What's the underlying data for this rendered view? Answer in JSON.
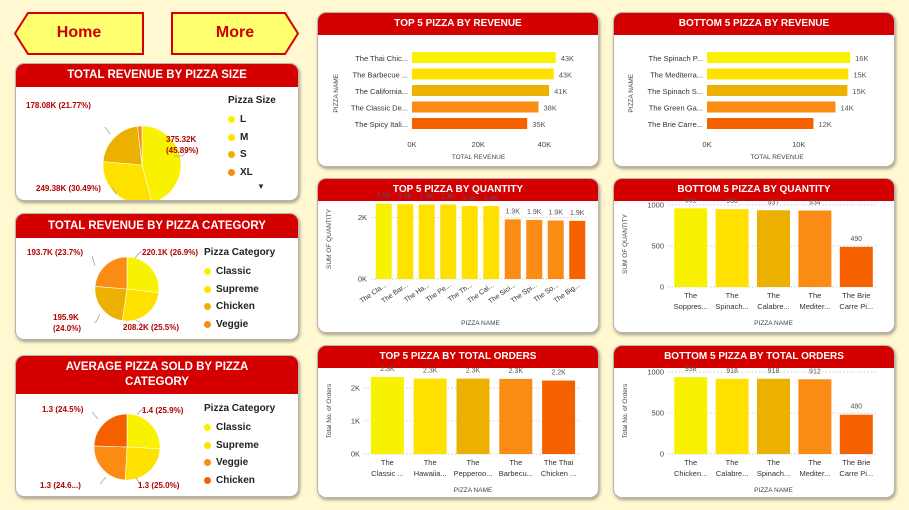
{
  "nav": {
    "home_label": "Home",
    "more_label": "More"
  },
  "colors": {
    "header_bg": "#d40000",
    "yellow_light": "#f8f200",
    "yellow": "#ffe100",
    "amber": "#ecb100",
    "orange": "#fa8c16",
    "orange_dark": "#f66100"
  },
  "size_card": {
    "title": "TOTAL REVENUE BY PIZZA SIZE",
    "legend_title": "Pizza Size",
    "legend": [
      "L",
      "M",
      "S",
      "XL"
    ],
    "labels": [
      "375.32K (45.89%)",
      "249.38K (30.49%)",
      "178.08K (21.77%)"
    ],
    "chart_data": {
      "type": "pie",
      "categories": [
        "L",
        "M",
        "S",
        "XL"
      ],
      "values": [
        375.32,
        249.38,
        178.08,
        15.13
      ],
      "unit": "K"
    }
  },
  "category_card": {
    "title": "TOTAL REVENUE BY PIZZA CATEGORY",
    "legend_title": "Pizza Category",
    "legend": [
      "Classic",
      "Supreme",
      "Chicken",
      "Veggie"
    ],
    "labels": [
      "220.1K (26.9%)",
      "208.2K (25.5%)",
      "195.9K (24.0%)",
      "193.7K (23.7%)"
    ],
    "chart_data": {
      "type": "pie",
      "categories": [
        "Classic",
        "Supreme",
        "Chicken",
        "Veggie"
      ],
      "values": [
        220.1,
        208.2,
        195.9,
        193.7
      ],
      "unit": "K"
    }
  },
  "avg_card": {
    "title": "AVERAGE PIZZA SOLD BY PIZZA CATEGORY",
    "legend_title": "Pizza Category",
    "legend": [
      "Classic",
      "Supreme",
      "Veggie",
      "Chicken"
    ],
    "labels": [
      "1.4 (25.9%)",
      "1.3 (25.0%)",
      "1.3 (24.6...)",
      "1.3 (24.5%)"
    ],
    "chart_data": {
      "type": "pie",
      "categories": [
        "Classic",
        "Supreme",
        "Veggie",
        "Chicken"
      ],
      "values": [
        1.4,
        1.3,
        1.3,
        1.3
      ],
      "percent": [
        25.9,
        25.0,
        24.6,
        24.5
      ]
    }
  },
  "top_rev": {
    "title": "TOP 5 PIZZA BY REVENUE",
    "ylabel": "PIZZA NAME",
    "xlabel": "TOTAL REVENUE",
    "ticks": [
      "0K",
      "20K",
      "40K"
    ],
    "names": [
      "The Thai Chic...",
      "The Barbecue ...",
      "The Californiа...",
      "The Classic De...",
      "The Spicy Itali..."
    ],
    "value_labels": [
      "43K",
      "43K",
      "41K",
      "38K",
      "35K"
    ],
    "chart_data": {
      "type": "bar",
      "orientation": "horizontal",
      "values": [
        43.4,
        42.8,
        41.4,
        38.2,
        34.8
      ],
      "xlim": [
        0,
        45
      ],
      "unit": "K"
    }
  },
  "bottom_rev": {
    "title": "BOTTOM 5 PIZZA BY REVENUE",
    "ylabel": "PIZZA NAME",
    "xlabel": "TOTAL REVENUE",
    "ticks": [
      "0K",
      "10K"
    ],
    "names": [
      "The Spinach P...",
      "The Mediterra...",
      "The Spinach S...",
      "The Green Ga...",
      "The Brie Carre..."
    ],
    "value_labels": [
      "16K",
      "15K",
      "15K",
      "14K",
      "12K"
    ],
    "chart_data": {
      "type": "bar",
      "orientation": "horizontal",
      "values": [
        15.6,
        15.4,
        15.3,
        14.0,
        11.6
      ],
      "xlim": [
        0,
        17
      ],
      "unit": "K"
    }
  },
  "top_qty": {
    "title": "TOP 5 PIZZA BY QUANTITY",
    "ylabel": "SUM OF QUANTITY",
    "xlabel": "PIZZA NAME",
    "ticks": [
      "0K",
      "2K"
    ],
    "names": [
      "The Cla...",
      "The Bar...",
      "The Ha...",
      "The Pe...",
      "The Th...",
      "The Cal...",
      "The Sici...",
      "The Spi...",
      "The So...",
      "The Big..."
    ],
    "value_labels": [
      "2.5K",
      "2.4K",
      "2.4K",
      "2.4K",
      "2.4K",
      "2.4K",
      "1.9K",
      "1.9K",
      "1.9K",
      "1.9K"
    ],
    "chart_data": {
      "type": "bar",
      "values": [
        2.45,
        2.43,
        2.42,
        2.42,
        2.37,
        2.37,
        1.94,
        1.92,
        1.9,
        1.89
      ],
      "ylim": [
        0,
        2.6
      ],
      "unit": "K"
    }
  },
  "bottom_qty": {
    "title": "BOTTOM 5 PIZZA BY QUANTITY",
    "ylabel": "SUM OF QUANTITY",
    "xlabel": "PIZZA NAME",
    "ticks": [
      "0",
      "500",
      "1000"
    ],
    "names": [
      [
        "The",
        "Soppres..."
      ],
      [
        "The",
        "Spinach..."
      ],
      [
        "The",
        "Calabre..."
      ],
      [
        "The",
        "Mediter..."
      ],
      [
        "The Brie",
        "Carre Pi..."
      ]
    ],
    "value_labels": [
      "961",
      "950",
      "937",
      "934",
      "490"
    ],
    "chart_data": {
      "type": "bar",
      "values": [
        961,
        950,
        937,
        934,
        490
      ],
      "ylim": [
        0,
        1050
      ]
    }
  },
  "top_orders": {
    "title": "TOP 5 PIZZA BY TOTAL ORDERS",
    "ylabel": "Total No. of Orders",
    "xlabel": "PIZZA NAME",
    "ticks": [
      "0K",
      "1K",
      "2K"
    ],
    "names": [
      [
        "The",
        "Classic ..."
      ],
      [
        "The",
        "Hawaiia..."
      ],
      [
        "The",
        "Pepperoo..."
      ],
      [
        "The",
        "Barbecu..."
      ],
      [
        "The Thai",
        "Chicken ..."
      ]
    ],
    "value_labels": [
      "2.3K",
      "2.3K",
      "2.3K",
      "2.3K",
      "2.2K"
    ],
    "chart_data": {
      "type": "bar",
      "values": [
        2.33,
        2.28,
        2.28,
        2.27,
        2.22
      ],
      "ylim": [
        0,
        2.6
      ],
      "unit": "K"
    }
  },
  "bottom_orders": {
    "title": "BOTTOM 5 PIZZA BY TOTAL ORDERS",
    "ylabel": "Total No. of Orders",
    "xlabel": "PIZZA NAME",
    "ticks": [
      "0",
      "500",
      "1000"
    ],
    "names": [
      [
        "The",
        "Chicken..."
      ],
      [
        "The",
        "Calabre..."
      ],
      [
        "The",
        "Spinach..."
      ],
      [
        "The",
        "Mediter..."
      ],
      [
        "The Brie",
        "Carre Pi..."
      ]
    ],
    "value_labels": [
      "938",
      "918",
      "918",
      "912",
      "480"
    ],
    "chart_data": {
      "type": "bar",
      "values": [
        938,
        918,
        918,
        912,
        480
      ],
      "ylim": [
        0,
        1050
      ]
    }
  }
}
